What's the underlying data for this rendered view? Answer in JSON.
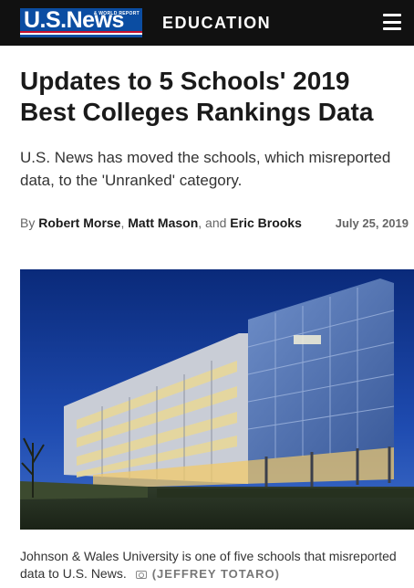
{
  "header": {
    "logo_text": "U.S.News",
    "logo_subtext": "& WORLD REPORT",
    "section": "EDUCATION",
    "menu_icon": "hamburger-menu-icon"
  },
  "article": {
    "headline": "Updates to 5 Schools' 2019 Best Colleges Rankings Data",
    "dek": "U.S. News has moved the schools, which misreported data, to the 'Unranked' category.",
    "byline": {
      "prefix": "By",
      "authors": [
        "Robert Morse",
        "Matt Mason",
        "Eric Brooks"
      ],
      "separator_1": ",",
      "separator_2": ", and",
      "date": "July 25, 2019"
    },
    "image": {
      "caption": "Johnson & Wales University is one of five schools that misreported data to U.S. News.",
      "credit": "(JEFFREY TOTARO)",
      "caption_icon": "camera-icon"
    }
  },
  "colors": {
    "topbar": "#111111",
    "logo_blue": "#0b4da2",
    "logo_red": "#c8102e",
    "text": "#1a1a1a"
  }
}
